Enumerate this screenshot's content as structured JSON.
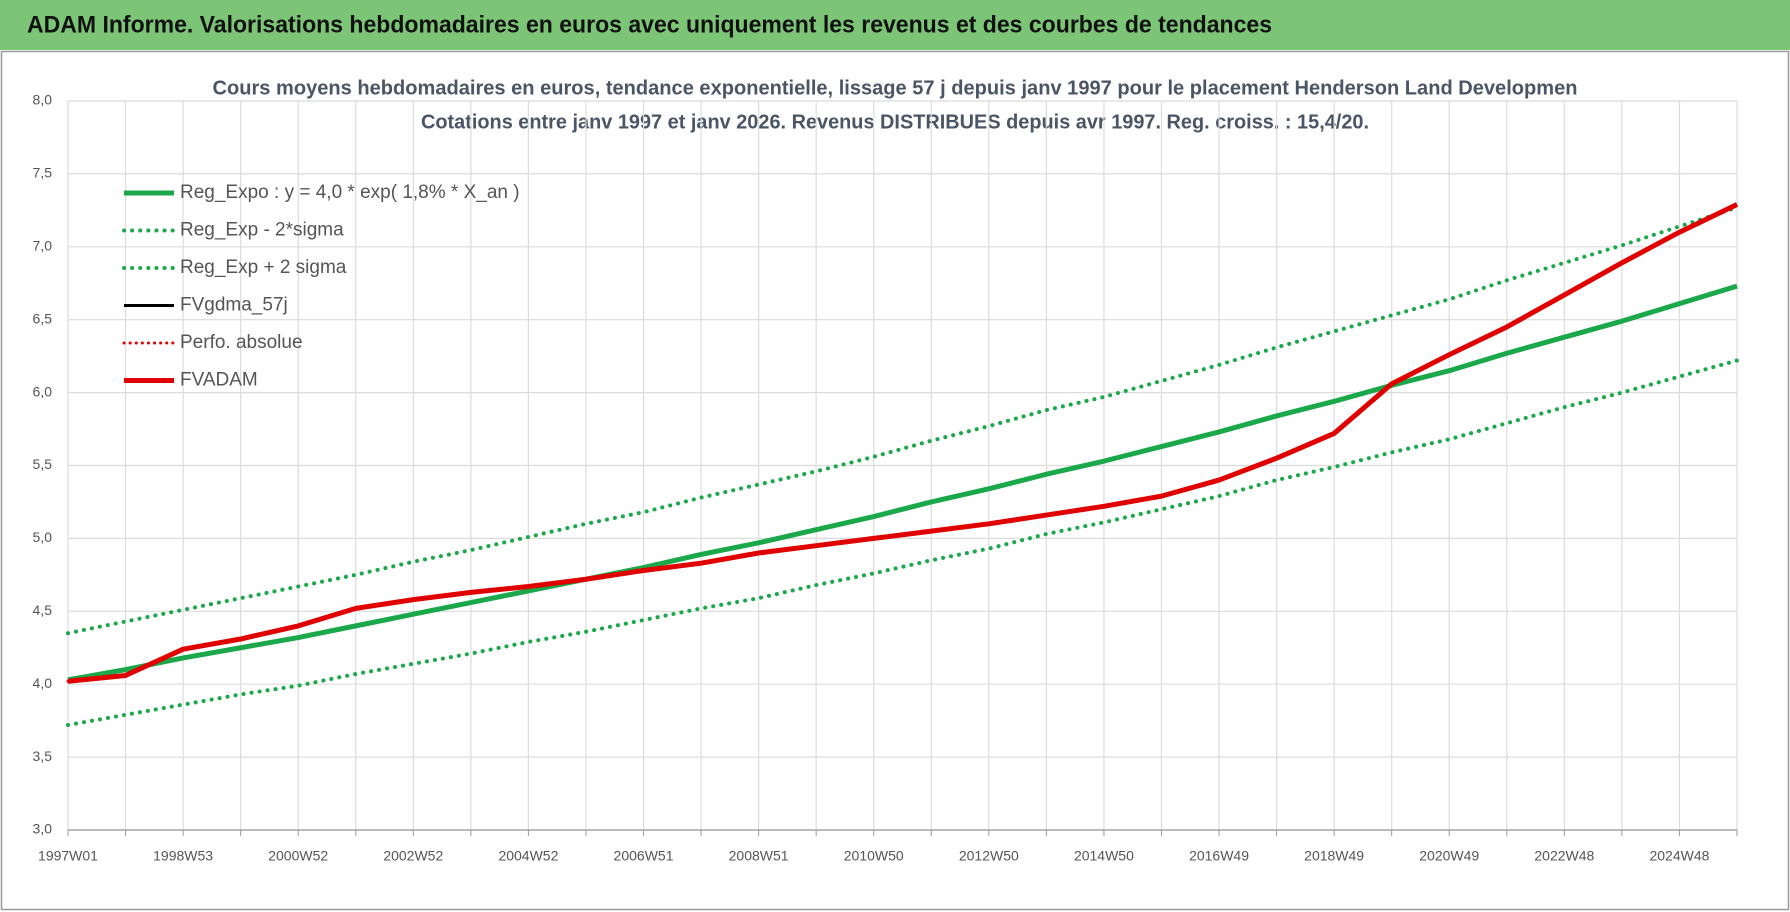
{
  "header": {
    "title": "ADAM Informe. Valorisations hebdomadaires en euros avec uniquement les revenus et des courbes de tendances"
  },
  "chart_data": {
    "type": "line",
    "title": "Cours moyens hebdomadaires en euros, tendance exponentielle, lissage 57 j depuis janv 1997  pour le placement Henderson Land Developmen",
    "subtitle": "Cotations entre janv 1997 et janv 2026. Revenus DISTRIBUES depuis avr 1997.  Reg. croiss. : 15,4/20.",
    "categories": [
      "1997W01",
      null,
      "1998W53",
      null,
      "2000W52",
      null,
      "2002W52",
      null,
      "2004W52",
      null,
      "2006W51",
      null,
      "2008W51",
      null,
      "2010W50",
      null,
      "2012W50",
      null,
      "2014W50",
      null,
      "2016W49",
      null,
      "2018W49",
      null,
      "2020W49",
      null,
      "2022W48",
      null,
      "2024W48",
      null
    ],
    "ylim": [
      3,
      8
    ],
    "yticks": [
      {
        "value": 3,
        "label": "3,0"
      },
      {
        "value": 3.5,
        "label": "3,5"
      },
      {
        "value": 4,
        "label": "4,0"
      },
      {
        "value": 4.5,
        "label": "4,5"
      },
      {
        "value": 5,
        "label": "5,0"
      },
      {
        "value": 5.5,
        "label": "5,5"
      },
      {
        "value": 6,
        "label": "6,0"
      },
      {
        "value": 6.5,
        "label": "6,5"
      },
      {
        "value": 7,
        "label": "7,0"
      },
      {
        "value": 7.5,
        "label": "7,5"
      },
      {
        "value": 8,
        "label": "8,0"
      }
    ],
    "grid": true,
    "legend": "top-left",
    "series": [
      {
        "name": "Reg_Expo : y = 4,0 * exp( 1,8% *  X_an )",
        "color": "#1aa84a",
        "style": "solid",
        "width": 5,
        "values": [
          4.03,
          4.1,
          4.18,
          4.25,
          4.32,
          4.4,
          4.48,
          4.56,
          4.64,
          4.72,
          4.8,
          4.89,
          4.97,
          5.06,
          5.15,
          5.25,
          5.34,
          5.44,
          5.53,
          5.63,
          5.73,
          5.84,
          5.94,
          6.05,
          6.15,
          6.27,
          6.38,
          6.49,
          6.61,
          6.73
        ]
      },
      {
        "name": "Reg_Exp - 2*sigma",
        "color": "#1aa84a",
        "style": "dotted",
        "width": 4,
        "values": [
          3.72,
          3.79,
          3.86,
          3.93,
          3.99,
          4.07,
          4.14,
          4.21,
          4.29,
          4.36,
          4.44,
          4.52,
          4.59,
          4.68,
          4.76,
          4.85,
          4.93,
          5.03,
          5.11,
          5.2,
          5.29,
          5.4,
          5.49,
          5.59,
          5.68,
          5.79,
          5.9,
          6.0,
          6.11,
          6.22
        ]
      },
      {
        "name": "Reg_Exp + 2 sigma",
        "color": "#1aa84a",
        "style": "dotted",
        "width": 4,
        "values": [
          4.35,
          4.43,
          4.51,
          4.59,
          4.67,
          4.75,
          4.84,
          4.92,
          5.01,
          5.1,
          5.18,
          5.28,
          5.37,
          5.46,
          5.56,
          5.67,
          5.77,
          5.88,
          5.97,
          6.08,
          6.19,
          6.31,
          6.42,
          6.53,
          6.64,
          6.77,
          6.89,
          7.01,
          7.14,
          7.27
        ]
      },
      {
        "name": "FVgdma_57j",
        "color": "#000000",
        "style": "solid",
        "width": 3,
        "values": [
          4.02,
          4.06,
          4.24,
          4.31,
          4.4,
          4.52,
          4.58,
          4.63,
          4.67,
          4.72,
          4.78,
          4.83,
          4.9,
          4.95,
          5.0,
          5.05,
          5.1,
          5.16,
          5.22,
          5.29,
          5.4,
          5.55,
          5.72,
          6.06,
          6.26,
          6.45,
          6.67,
          6.89,
          7.1,
          7.29
        ]
      },
      {
        "name": "Perfo. absolue",
        "color": "#e00000",
        "style": "dotted",
        "width": 3,
        "values": [
          4.02,
          4.06,
          4.24,
          4.31,
          4.4,
          4.52,
          4.58,
          4.63,
          4.67,
          4.72,
          4.78,
          4.83,
          4.9,
          4.95,
          5.0,
          5.05,
          5.1,
          5.16,
          5.22,
          5.29,
          5.4,
          5.55,
          5.72,
          6.06,
          6.26,
          6.45,
          6.67,
          6.89,
          7.1,
          7.29
        ]
      },
      {
        "name": "FVADAM",
        "color": "#e00000",
        "style": "solid",
        "width": 5,
        "values": [
          4.02,
          4.06,
          4.24,
          4.31,
          4.4,
          4.52,
          4.58,
          4.63,
          4.67,
          4.72,
          4.78,
          4.83,
          4.9,
          4.95,
          5.0,
          5.05,
          5.1,
          5.16,
          5.22,
          5.29,
          5.4,
          5.55,
          5.72,
          6.06,
          6.26,
          6.45,
          6.67,
          6.89,
          7.1,
          7.29
        ]
      }
    ]
  }
}
